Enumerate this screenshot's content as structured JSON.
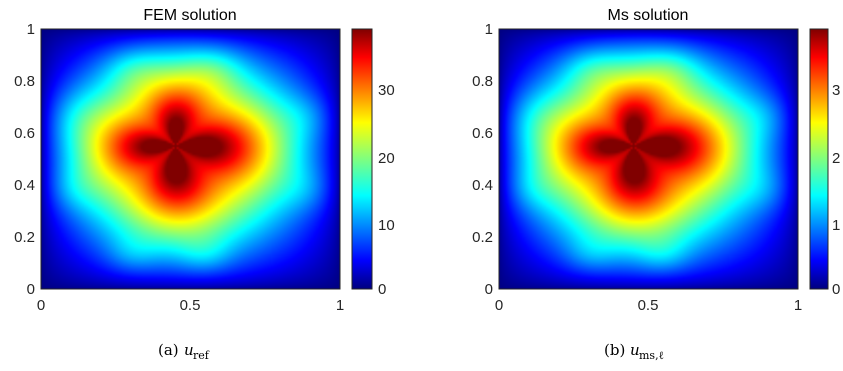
{
  "chart_data": [
    {
      "type": "heatmap",
      "title": "FEM solution",
      "xlim": [
        0,
        1
      ],
      "ylim": [
        0,
        1
      ],
      "x_ticks": [
        "0",
        "0.5",
        "1"
      ],
      "y_ticks": [
        "0",
        "0.2",
        "0.4",
        "0.6",
        "0.8",
        "1"
      ],
      "colorbar": {
        "range": [
          0,
          38
        ],
        "ticks": [
          "0",
          "10",
          "20",
          "30"
        ],
        "tick_values": [
          0,
          10,
          20,
          30
        ],
        "colormap": "jet"
      },
      "max_value": 38,
      "caption": {
        "label": "(a)",
        "math": "u",
        "sub": "ref"
      }
    },
    {
      "type": "heatmap",
      "title": "Ms solution",
      "xlim": [
        0,
        1
      ],
      "ylim": [
        0,
        1
      ],
      "x_ticks": [
        "0",
        "0.5",
        "1"
      ],
      "y_ticks": [
        "0",
        "0.2",
        "0.4",
        "0.6",
        "0.8",
        "1"
      ],
      "colorbar": {
        "range": [
          0,
          3.8
        ],
        "ticks": [
          "0",
          "1",
          "2",
          "3"
        ],
        "tick_values": [
          0,
          1,
          2,
          3
        ],
        "colormap": "jet"
      },
      "max_value": 3.8,
      "caption": {
        "label": "(b)",
        "math": "u",
        "sub": "ms,ℓ"
      }
    }
  ]
}
